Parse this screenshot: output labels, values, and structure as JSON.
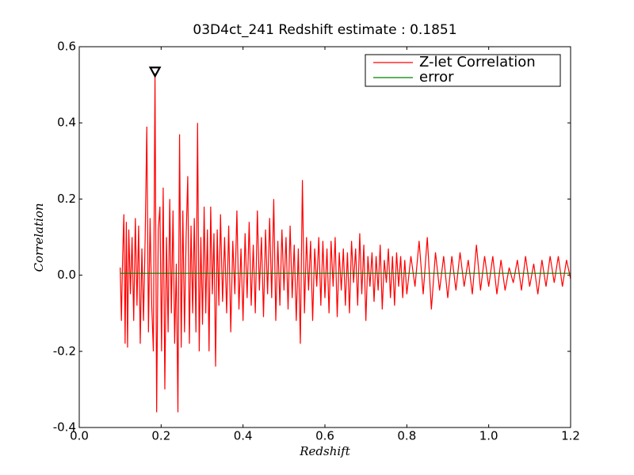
{
  "chart_data": {
    "type": "line",
    "title": "03D4ct_241 Redshift estimate : 0.1851",
    "xlabel": "Redshift",
    "ylabel": "Correlation",
    "xlim": [
      0,
      1.2
    ],
    "ylim": [
      -0.4,
      0.6
    ],
    "xticks": [
      {
        "value": 0,
        "label": "0.0"
      },
      0.2,
      0.4,
      0.6,
      0.8,
      {
        "value": 1,
        "label": "1.0"
      },
      1.2
    ],
    "yticks": [
      -0.4,
      -0.2,
      {
        "value": 0,
        "label": "0.0"
      },
      0.2,
      0.4,
      0.6
    ],
    "grid": false,
    "legend": "upper right",
    "series": [
      {
        "name": "Z-let Correlation",
        "color": "#ff0000",
        "x": [
          0.1,
          0.103,
          0.106,
          0.109,
          0.112,
          0.115,
          0.118,
          0.121,
          0.125,
          0.129,
          0.133,
          0.137,
          0.141,
          0.145,
          0.149,
          0.153,
          0.157,
          0.161,
          0.165,
          0.169,
          0.173,
          0.177,
          0.181,
          0.185,
          0.189,
          0.193,
          0.197,
          0.201,
          0.205,
          0.209,
          0.213,
          0.217,
          0.221,
          0.225,
          0.229,
          0.233,
          0.237,
          0.241,
          0.245,
          0.249,
          0.253,
          0.257,
          0.261,
          0.265,
          0.269,
          0.273,
          0.277,
          0.281,
          0.285,
          0.289,
          0.293,
          0.297,
          0.301,
          0.305,
          0.309,
          0.313,
          0.317,
          0.321,
          0.325,
          0.329,
          0.333,
          0.337,
          0.341,
          0.345,
          0.35,
          0.355,
          0.36,
          0.365,
          0.37,
          0.375,
          0.38,
          0.385,
          0.39,
          0.395,
          0.4,
          0.405,
          0.41,
          0.415,
          0.42,
          0.425,
          0.43,
          0.435,
          0.44,
          0.445,
          0.45,
          0.455,
          0.46,
          0.465,
          0.47,
          0.475,
          0.48,
          0.485,
          0.49,
          0.495,
          0.5,
          0.505,
          0.51,
          0.515,
          0.52,
          0.525,
          0.53,
          0.535,
          0.54,
          0.545,
          0.55,
          0.555,
          0.56,
          0.565,
          0.57,
          0.575,
          0.58,
          0.585,
          0.59,
          0.595,
          0.6,
          0.605,
          0.61,
          0.615,
          0.62,
          0.625,
          0.63,
          0.635,
          0.64,
          0.645,
          0.65,
          0.655,
          0.66,
          0.665,
          0.67,
          0.675,
          0.68,
          0.685,
          0.69,
          0.695,
          0.7,
          0.705,
          0.71,
          0.715,
          0.72,
          0.725,
          0.73,
          0.735,
          0.74,
          0.745,
          0.75,
          0.755,
          0.76,
          0.765,
          0.77,
          0.775,
          0.78,
          0.785,
          0.79,
          0.795,
          0.8,
          0.81,
          0.82,
          0.83,
          0.84,
          0.85,
          0.86,
          0.87,
          0.88,
          0.89,
          0.9,
          0.91,
          0.92,
          0.93,
          0.94,
          0.95,
          0.96,
          0.97,
          0.98,
          0.99,
          1.0,
          1.01,
          1.02,
          1.03,
          1.04,
          1.05,
          1.06,
          1.07,
          1.08,
          1.09,
          1.1,
          1.11,
          1.12,
          1.13,
          1.14,
          1.15,
          1.16,
          1.17,
          1.18,
          1.19,
          1.2
        ],
        "values": [
          0.02,
          -0.12,
          0.05,
          0.16,
          -0.18,
          0.14,
          -0.19,
          0.12,
          -0.05,
          0.1,
          -0.12,
          0.15,
          -0.08,
          0.13,
          -0.18,
          0.07,
          -0.12,
          0.1,
          0.39,
          -0.15,
          0.15,
          -0.08,
          -0.2,
          0.53,
          -0.36,
          0.12,
          0.18,
          -0.2,
          0.23,
          -0.3,
          0.1,
          -0.15,
          0.2,
          -0.1,
          0.17,
          -0.18,
          0.03,
          -0.36,
          0.37,
          -0.19,
          0.17,
          -0.15,
          0.1,
          0.26,
          -0.18,
          0.13,
          -0.1,
          0.15,
          -0.15,
          0.4,
          -0.2,
          0.1,
          -0.13,
          0.18,
          -0.1,
          0.12,
          -0.2,
          0.18,
          -0.05,
          0.11,
          -0.24,
          0.12,
          -0.08,
          0.16,
          -0.07,
          0.1,
          -0.1,
          0.13,
          -0.15,
          0.09,
          -0.05,
          0.17,
          -0.09,
          0.07,
          -0.12,
          0.11,
          -0.06,
          0.14,
          -0.08,
          0.08,
          -0.1,
          0.17,
          -0.04,
          0.1,
          -0.11,
          0.12,
          -0.05,
          0.15,
          -0.06,
          0.2,
          -0.12,
          0.09,
          -0.08,
          0.12,
          -0.04,
          0.1,
          -0.09,
          0.13,
          -0.06,
          0.08,
          -0.12,
          0.07,
          -0.18,
          0.25,
          -0.1,
          0.1,
          -0.04,
          0.09,
          -0.12,
          0.07,
          -0.03,
          0.1,
          -0.08,
          0.09,
          -0.06,
          0.07,
          -0.1,
          0.09,
          -0.03,
          0.1,
          -0.11,
          0.06,
          -0.04,
          0.07,
          -0.08,
          0.06,
          -0.1,
          0.09,
          -0.02,
          0.07,
          -0.08,
          0.11,
          -0.05,
          0.08,
          -0.12,
          0.05,
          -0.03,
          0.06,
          -0.07,
          0.05,
          -0.04,
          0.08,
          -0.09,
          0.04,
          -0.02,
          0.07,
          -0.06,
          0.05,
          -0.08,
          0.06,
          -0.03,
          0.05,
          -0.06,
          0.04,
          -0.05,
          0.05,
          -0.03,
          0.09,
          -0.05,
          0.1,
          -0.09,
          0.06,
          -0.04,
          0.05,
          -0.06,
          0.05,
          -0.04,
          0.06,
          -0.03,
          0.04,
          -0.05,
          0.08,
          -0.04,
          0.05,
          -0.03,
          0.05,
          -0.05,
          0.04,
          -0.04,
          0.02,
          -0.02,
          0.04,
          -0.04,
          0.05,
          -0.03,
          0.03,
          -0.05,
          0.04,
          -0.03,
          0.05,
          -0.02,
          0.05,
          -0.03,
          0.04,
          -0.01
        ]
      },
      {
        "name": "error",
        "color": "#008000",
        "x": [
          0.1,
          1.2
        ],
        "values": [
          0.005,
          0.005
        ]
      }
    ],
    "peak_marker": {
      "x": 0.1851,
      "y": 0.535
    }
  }
}
